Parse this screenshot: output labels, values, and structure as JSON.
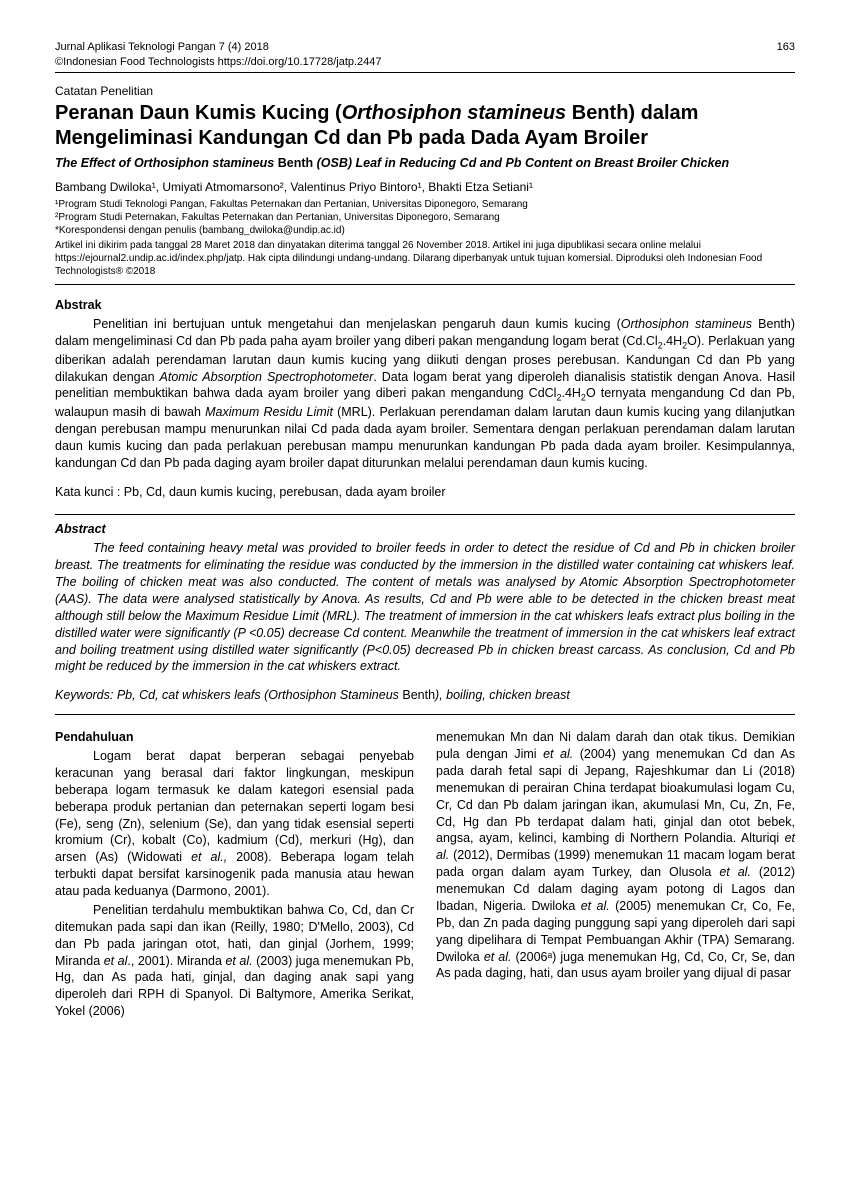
{
  "header": {
    "journal": "Jurnal Aplikasi Teknologi Pangan 7 (4) 2018",
    "copyright": "©Indonesian Food Technologists https://doi.org/10.17728/jatp.2447",
    "page_number": "163"
  },
  "article": {
    "note_label": "Catatan Penelitian",
    "title_pre": "Peranan Daun Kumis Kucing (",
    "title_italic": "Orthosiphon stamineus",
    "title_post": " Benth) dalam Mengeliminasi Kandungan Cd dan Pb pada Dada Ayam Broiler",
    "subtitle_pre": "The Effect of Orthosiphon stamineus ",
    "subtitle_mid_normal": "Benth ",
    "subtitle_post": "(OSB) Leaf in Reducing Cd and Pb Content on Breast Broiler Chicken",
    "authors_html": "Bambang Dwiloka¹, Umiyati Atmomarsono², Valentinus Priyo Bintoro¹, Bhakti Etza Setiani¹",
    "aff1": "¹Program Studi Teknologi Pangan, Fakultas Peternakan dan Pertanian, Universitas Diponegoro, Semarang",
    "aff2": "²Program Studi Peternakan, Fakultas Peternakan dan Pertanian, Universitas Diponegoro, Semarang",
    "corresp": "*Korespondensi dengan penulis (bambang_dwiloka@undip.ac.id)",
    "submission": "Artikel ini dikirim pada tanggal 28 Maret 2018 dan dinyatakan diterima tanggal 26 November 2018. Artikel ini juga dipublikasi secara online melalui https://ejournal2.undip.ac.id/index.php/jatp. Hak cipta dilindungi undang-undang. Dilarang diperbanyak untuk tujuan komersial. Diproduksi oleh Indonesian Food Technologists® ©2018"
  },
  "abstrak": {
    "heading": "Abstrak",
    "kata_kunci": "Kata kunci : Pb, Cd, daun kumis kucing, perebusan, dada ayam broiler"
  },
  "abstract_en": {
    "heading": "Abstract",
    "keywords_pre": "Keywords: Pb, Cd, cat whiskers leafs (Orthosiphon Stamineus ",
    "keywords_mid": "Benth",
    "keywords_post": "), boiling, chicken breast"
  },
  "pendahuluan": {
    "heading": "Pendahuluan"
  }
}
